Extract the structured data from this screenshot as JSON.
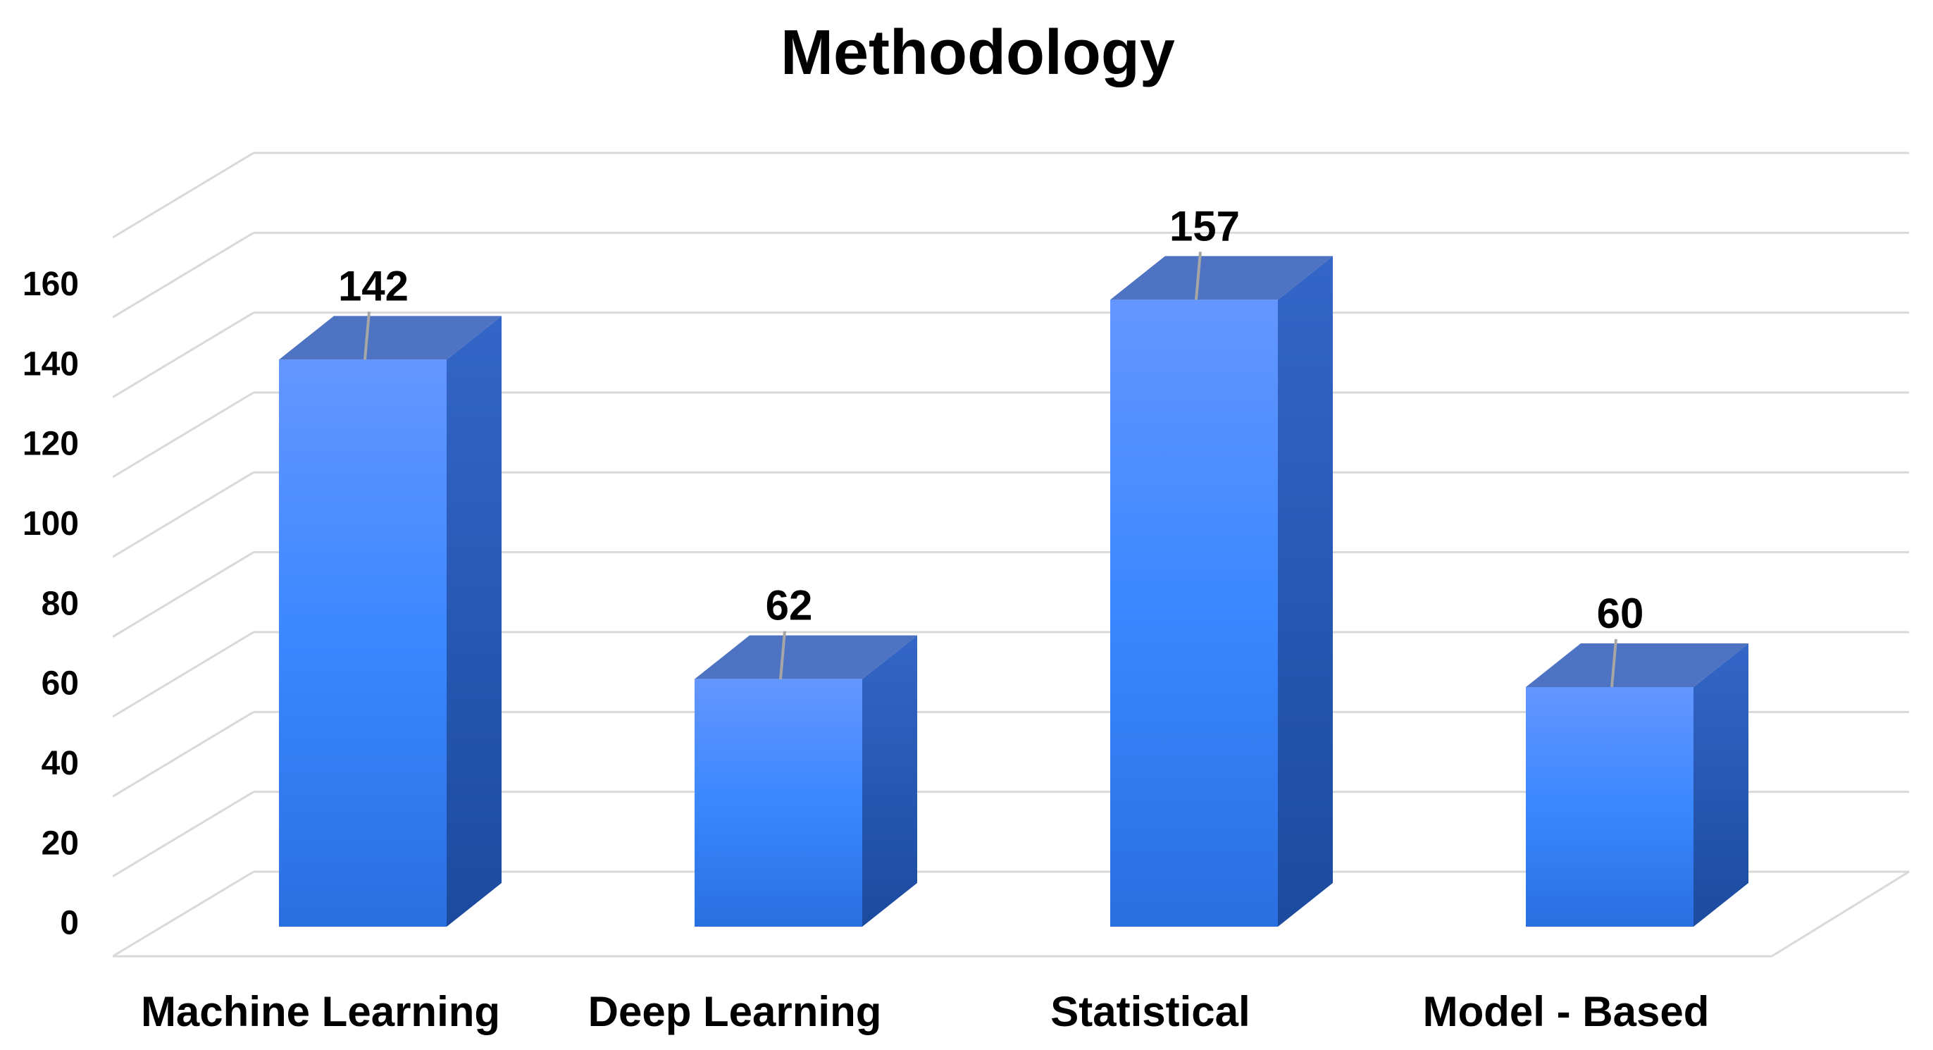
{
  "chart_data": {
    "type": "bar",
    "title": "Methodology",
    "xlabel": "",
    "ylabel": "",
    "categories": [
      "Machine Learning",
      "Deep Learning",
      "Statistical",
      "Model - Based"
    ],
    "values": [
      142,
      62,
      157,
      60
    ],
    "data_labels": [
      "142",
      "62",
      "157",
      "60"
    ],
    "yticks": [
      "0",
      "20",
      "40",
      "60",
      "80",
      "100",
      "120",
      "140",
      "160"
    ],
    "ylim": [
      0,
      180
    ],
    "grid": true,
    "legend": "none",
    "style": "3d-column",
    "colors": {
      "front_top": "#6496FF",
      "front_mid": "#3A87FF",
      "front_bottom": "#2A6FE0",
      "side_top": "#3466C8",
      "side_bottom": "#1C4A9E",
      "top_face": "#4D73C2",
      "grid": "#D9D9D9",
      "leader": "#A6A6A6"
    }
  }
}
